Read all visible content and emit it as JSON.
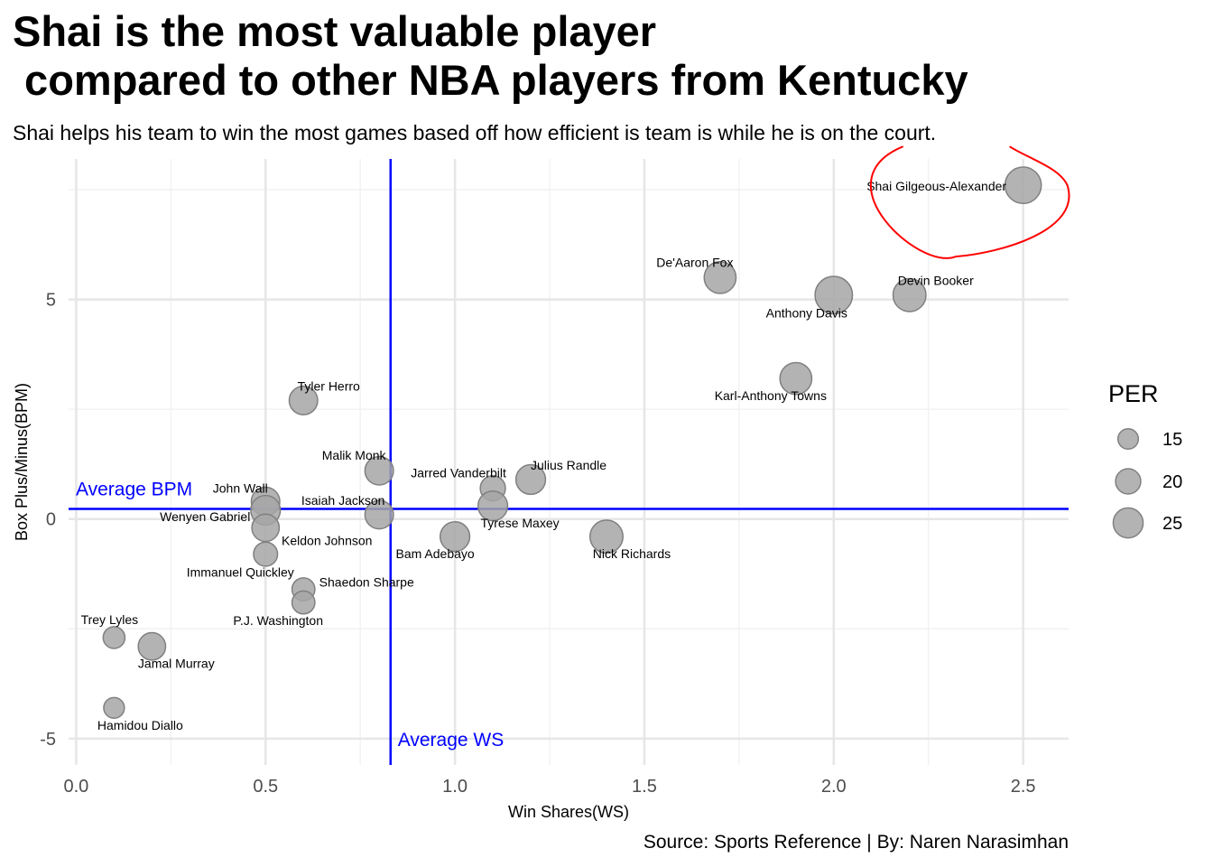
{
  "header": {
    "title": "Shai is the most valuable player\n compared to other NBA players from Kentucky",
    "subtitle": "Shai helps his team to win the most games based off how efficient is team is while he is on the court.",
    "caption": "Source: Sports Reference | By: Naren Narasimhan"
  },
  "chart_data": {
    "type": "scatter",
    "title": "Shai is the most valuable player\n compared to other NBA players from Kentucky",
    "subtitle": "Shai helps his team to win the most games based off how efficient is team is while he is on the court.",
    "xlabel": "Win Shares(WS)",
    "ylabel": "Box Plus/Minus(BPM)",
    "xlim": [
      -0.02,
      2.62
    ],
    "ylim": [
      -5.6,
      8.2
    ],
    "x_ticks": [
      0.0,
      0.5,
      1.0,
      1.5,
      2.0,
      2.5
    ],
    "x_tick_labels": [
      "0.0",
      "0.5",
      "1.0",
      "1.5",
      "2.0",
      "2.5"
    ],
    "y_ticks": [
      -5,
      0,
      5
    ],
    "y_tick_labels": [
      "-5",
      "0",
      "5"
    ],
    "grid": true,
    "size_variable": "PER",
    "point_color": "#a6a6a6",
    "points": [
      {
        "name": "Shai Gilgeous-Alexander",
        "x": 2.5,
        "y": 7.6,
        "per": 26
      },
      {
        "name": "De'Aaron Fox",
        "x": 1.7,
        "y": 5.5,
        "per": 22
      },
      {
        "name": "Anthony Davis",
        "x": 2.0,
        "y": 5.1,
        "per": 27
      },
      {
        "name": "Devin Booker",
        "x": 2.2,
        "y": 5.1,
        "per": 23
      },
      {
        "name": "Karl-Anthony Towns",
        "x": 1.9,
        "y": 3.2,
        "per": 22
      },
      {
        "name": "Tyler Herro",
        "x": 0.6,
        "y": 2.7,
        "per": 19
      },
      {
        "name": "Malik Monk",
        "x": 0.8,
        "y": 1.1,
        "per": 19
      },
      {
        "name": "Julius Randle",
        "x": 1.2,
        "y": 0.9,
        "per": 20
      },
      {
        "name": "Jarred Vanderbilt",
        "x": 1.1,
        "y": 0.7,
        "per": 16
      },
      {
        "name": "John Wall",
        "x": 0.5,
        "y": 0.4,
        "per": 19
      },
      {
        "name": "Tyrese Maxey",
        "x": 1.1,
        "y": 0.3,
        "per": 20
      },
      {
        "name": "Wenyen Gabriel",
        "x": 0.5,
        "y": 0.2,
        "per": 20
      },
      {
        "name": "Isaiah Jackson",
        "x": 0.8,
        "y": 0.1,
        "per": 19
      },
      {
        "name": "Keldon Johnson",
        "x": 0.5,
        "y": -0.2,
        "per": 18
      },
      {
        "name": "Bam Adebayo",
        "x": 1.0,
        "y": -0.4,
        "per": 20
      },
      {
        "name": "Nick Richards",
        "x": 1.4,
        "y": -0.4,
        "per": 23
      },
      {
        "name": "Immanuel Quickley",
        "x": 0.5,
        "y": -0.8,
        "per": 15
      },
      {
        "name": "Shaedon Sharpe",
        "x": 0.6,
        "y": -1.6,
        "per": 14
      },
      {
        "name": "P.J. Washington",
        "x": 0.6,
        "y": -1.9,
        "per": 14
      },
      {
        "name": "Trey Lyles",
        "x": 0.1,
        "y": -2.7,
        "per": 13
      },
      {
        "name": "Jamal Murray",
        "x": 0.2,
        "y": -2.9,
        "per": 18
      },
      {
        "name": "Hamidou Diallo",
        "x": 0.1,
        "y": -4.3,
        "per": 12
      }
    ],
    "reference_lines": {
      "average_ws": {
        "value": 0.83,
        "label": "Average WS",
        "color": "#0000ff"
      },
      "average_bpm": {
        "value": 0.23,
        "label": "Average BPM",
        "color": "#0000ff"
      }
    },
    "highlight": {
      "target": "Shai Gilgeous-Alexander",
      "shape": "ellipse",
      "color": "#ff0000"
    },
    "legend": {
      "title": "PER",
      "position": "right",
      "entries": [
        {
          "label": "15",
          "per": 15
        },
        {
          "label": "20",
          "per": 20
        },
        {
          "label": "25",
          "per": 25
        }
      ]
    }
  }
}
